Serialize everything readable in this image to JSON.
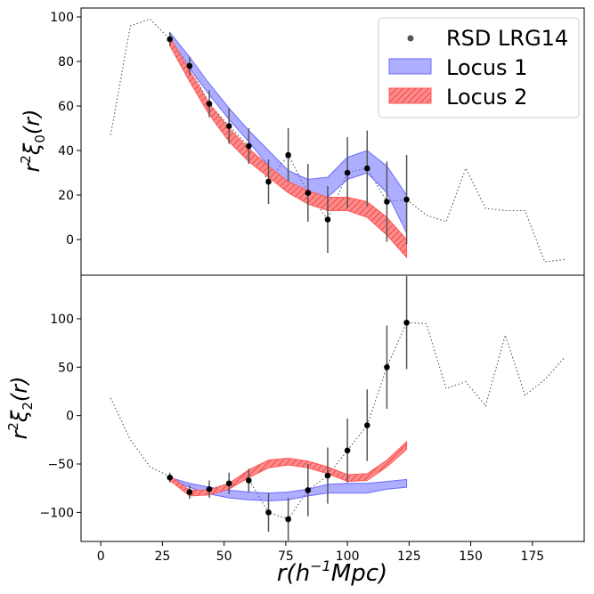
{
  "chart_data": [
    {
      "type": "line",
      "panel": "top",
      "ylabel_base": "r",
      "ylabel_sup": "2",
      "ylabel_func": "ξ",
      "ylabel_sub": "0",
      "ylabel_arg": "(r)",
      "xlim": [
        -8,
        196
      ],
      "ylim": [
        -16,
        104
      ],
      "yticks": [
        0,
        20,
        40,
        60,
        80,
        100
      ],
      "yticklabels": [
        "0",
        "20",
        "40",
        "60",
        "80",
        "100"
      ],
      "series": [
        {
          "name": "dotted",
          "color": "#555555",
          "x": [
            4,
            12,
            20,
            28,
            36,
            44,
            52,
            60,
            68,
            76,
            84,
            92,
            100,
            108,
            116,
            124,
            132,
            140,
            148,
            156,
            164,
            172,
            180,
            188
          ],
          "y": [
            47,
            96,
            99,
            90,
            78,
            61,
            51,
            42,
            26,
            38,
            21,
            9,
            30,
            32,
            17,
            18,
            11,
            8,
            32,
            14,
            13,
            13,
            -10,
            -9
          ]
        },
        {
          "name": "Locus 1",
          "color": "#6b6bff",
          "x": [
            28,
            36,
            44,
            52,
            60,
            68,
            76,
            84,
            92,
            100,
            108,
            116,
            124
          ],
          "upper": [
            93,
            82,
            70,
            59,
            49,
            40,
            31,
            27,
            28,
            37,
            40,
            33,
            20
          ],
          "lower": [
            88,
            77,
            65,
            54,
            44,
            33,
            24,
            20,
            19,
            27,
            30,
            21,
            3
          ]
        },
        {
          "name": "Locus 2",
          "color": "#ff5a5a",
          "x": [
            28,
            36,
            44,
            52,
            60,
            68,
            76,
            84,
            92,
            100,
            108,
            116,
            124
          ],
          "upper": [
            91,
            76,
            61,
            50,
            41,
            33,
            26,
            22,
            19,
            19,
            17,
            10,
            0
          ],
          "lower": [
            87,
            71,
            56,
            44,
            35,
            28,
            21,
            16,
            13,
            13,
            10,
            2,
            -8
          ]
        },
        {
          "name": "RSD LRG14",
          "color": "#000000",
          "x": [
            28,
            36,
            44,
            52,
            60,
            68,
            76,
            84,
            92,
            100,
            108,
            116,
            124
          ],
          "y": [
            90,
            78,
            61,
            51,
            42,
            26,
            38,
            21,
            9,
            30,
            32,
            17,
            18
          ],
          "yerr": [
            3,
            4,
            6,
            8,
            8,
            10,
            12,
            13,
            15,
            16,
            17,
            18,
            20
          ]
        }
      ]
    },
    {
      "type": "line",
      "panel": "bottom",
      "ylabel_base": "r",
      "ylabel_sup": "2",
      "ylabel_func": "ξ",
      "ylabel_sub": "2",
      "ylabel_arg": "(r)",
      "xlabel_text": "r(h",
      "xlabel_sup": "−1",
      "xlabel_end": "Mpc)",
      "xlim": [
        -8,
        196
      ],
      "ylim": [
        -130,
        145
      ],
      "xticks": [
        0,
        25,
        50,
        75,
        100,
        125,
        150,
        175
      ],
      "xticklabels": [
        "0",
        "25",
        "50",
        "75",
        "100",
        "125",
        "150",
        "175"
      ],
      "yticks": [
        -100,
        -50,
        0,
        50,
        100
      ],
      "yticklabels": [
        "−100",
        "−50",
        "0",
        "50",
        "100"
      ],
      "series": [
        {
          "name": "dotted",
          "color": "#555555",
          "x": [
            4,
            12,
            20,
            28,
            36,
            44,
            52,
            60,
            68,
            76,
            84,
            92,
            100,
            108,
            116,
            124,
            132,
            140,
            148,
            156,
            164,
            172,
            180,
            188
          ],
          "y": [
            18,
            -25,
            -53,
            -63,
            -79,
            -76,
            -70,
            -66,
            -100,
            -107,
            -77,
            -62,
            -36,
            -10,
            50,
            96,
            95,
            28,
            35,
            10,
            83,
            21,
            37,
            60
          ]
        },
        {
          "name": "Locus 1",
          "color": "#6b6bff",
          "x": [
            28,
            36,
            44,
            52,
            60,
            68,
            76,
            84,
            92,
            100,
            108,
            116,
            124
          ],
          "upper": [
            -64,
            -70,
            -74,
            -77,
            -79,
            -80,
            -79,
            -76,
            -71,
            -70,
            -70,
            -68,
            -66
          ],
          "lower": [
            -66,
            -74,
            -81,
            -85,
            -87,
            -88,
            -87,
            -83,
            -80,
            -80,
            -80,
            -76,
            -74
          ]
        },
        {
          "name": "Locus 2",
          "color": "#ff5a5a",
          "x": [
            28,
            36,
            44,
            52,
            60,
            68,
            76,
            84,
            92,
            100,
            108,
            116,
            124
          ],
          "upper": [
            -62,
            -77,
            -77,
            -70,
            -56,
            -46,
            -44,
            -47,
            -53,
            -61,
            -60,
            -46,
            -27
          ],
          "lower": [
            -67,
            -83,
            -82,
            -76,
            -64,
            -54,
            -51,
            -54,
            -60,
            -68,
            -67,
            -53,
            -35
          ]
        },
        {
          "name": "RSD LRG14",
          "color": "#000000",
          "x": [
            28,
            36,
            44,
            52,
            60,
            68,
            76,
            84,
            92,
            100,
            108,
            116,
            124
          ],
          "y": [
            -64,
            -79,
            -76,
            -70,
            -67,
            -100,
            -107,
            -77,
            -62,
            -36,
            -10,
            50,
            96
          ],
          "yerr": [
            5,
            7,
            9,
            11,
            12,
            20,
            22,
            27,
            29,
            33,
            37,
            43,
            48
          ]
        }
      ]
    }
  ],
  "legend": [
    {
      "label": "RSD LRG14",
      "kind": "point",
      "color": "#555555"
    },
    {
      "label": "Locus 1",
      "kind": "band-plain",
      "color": "#6b6bff"
    },
    {
      "label": "Locus 2",
      "kind": "band-hatched",
      "color": "#ff5a5a"
    }
  ]
}
